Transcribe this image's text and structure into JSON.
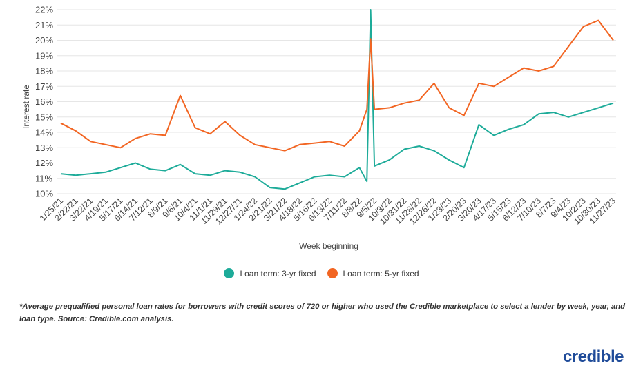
{
  "chart_data": {
    "type": "line",
    "xlabel": "Week beginning",
    "ylabel": "Interest rate",
    "ylim": [
      10,
      22
    ],
    "y_ticks": [
      "10%",
      "11%",
      "12%",
      "13%",
      "14%",
      "15%",
      "16%",
      "17%",
      "18%",
      "19%",
      "20%",
      "21%",
      "22%"
    ],
    "x_ticks": [
      "1/25/21",
      "2/22/21",
      "3/22/21",
      "4/19/21",
      "5/17/21",
      "6/14/21",
      "7/12/21",
      "8/9/21",
      "9/6/21",
      "10/4/21",
      "11/1/21",
      "11/29/21",
      "12/27/21",
      "1/24/22",
      "2/21/22",
      "3/21/22",
      "4/18/22",
      "5/16/22",
      "6/13/22",
      "7/11/22",
      "8/8/22",
      "9/5/22",
      "10/3/22",
      "10/31/22",
      "11/28/22",
      "12/26/22",
      "1/23/23",
      "2/20/23",
      "3/20/23",
      "4/17/23",
      "5/15/23",
      "6/12/23",
      "7/10/23",
      "8/7/23",
      "9/4/23",
      "10/2/23",
      "10/30/23",
      "11/27/23"
    ],
    "grid": true,
    "legend_position": "bottom",
    "series": [
      {
        "name": "Loan term: 3-yr fixed",
        "color": "#1dab99",
        "x": [
          "1/25/21",
          "2/22/21",
          "3/22/21",
          "4/19/21",
          "5/17/21",
          "6/14/21",
          "7/12/21",
          "8/9/21",
          "9/6/21",
          "10/4/21",
          "11/1/21",
          "11/29/21",
          "12/27/21",
          "1/24/22",
          "2/21/22",
          "3/21/22",
          "4/18/22",
          "5/16/22",
          "6/13/22",
          "7/11/22",
          "8/8/22",
          "8/22/22",
          "8/29/22",
          "9/5/22",
          "10/3/22",
          "10/31/22",
          "11/28/22",
          "12/26/22",
          "1/23/23",
          "2/20/23",
          "3/20/23",
          "4/17/23",
          "5/15/23",
          "6/12/23",
          "7/10/23",
          "8/7/23",
          "9/4/23",
          "10/2/23",
          "10/30/23",
          "11/27/23"
        ],
        "values": [
          11.3,
          11.2,
          11.3,
          11.4,
          11.7,
          12.0,
          11.6,
          11.5,
          11.9,
          11.3,
          11.2,
          11.5,
          11.4,
          11.1,
          10.4,
          10.3,
          10.7,
          11.1,
          11.2,
          11.1,
          11.7,
          10.8,
          22.0,
          11.8,
          12.2,
          12.9,
          13.1,
          12.8,
          12.2,
          11.7,
          14.5,
          13.8,
          14.2,
          14.5,
          15.2,
          15.3,
          15.0,
          15.3,
          15.6,
          15.9
        ]
      },
      {
        "name": "Loan term: 5-yr fixed",
        "color": "#f26522",
        "x": [
          "1/25/21",
          "2/22/21",
          "3/22/21",
          "4/19/21",
          "5/17/21",
          "6/14/21",
          "7/12/21",
          "8/9/21",
          "9/6/21",
          "10/4/21",
          "11/1/21",
          "11/29/21",
          "12/27/21",
          "1/24/22",
          "2/21/22",
          "3/21/22",
          "4/18/22",
          "5/16/22",
          "6/13/22",
          "7/11/22",
          "8/8/22",
          "8/22/22",
          "8/29/22",
          "9/5/22",
          "10/3/22",
          "10/31/22",
          "11/28/22",
          "12/26/22",
          "1/23/23",
          "2/20/23",
          "3/20/23",
          "4/17/23",
          "5/15/23",
          "6/12/23",
          "7/10/23",
          "8/7/23",
          "9/4/23",
          "10/2/23",
          "10/30/23",
          "11/27/23"
        ],
        "values": [
          14.6,
          14.1,
          13.4,
          13.2,
          13.0,
          13.6,
          13.9,
          13.8,
          16.4,
          14.3,
          13.9,
          14.7,
          13.8,
          13.2,
          13.0,
          12.8,
          13.2,
          13.3,
          13.4,
          13.1,
          14.1,
          15.5,
          20.1,
          15.5,
          15.6,
          15.9,
          16.1,
          17.2,
          15.6,
          15.1,
          17.2,
          17.0,
          17.6,
          18.2,
          18.0,
          18.3,
          19.6,
          20.9,
          21.3,
          20.0
        ]
      }
    ]
  },
  "footnote": "*Average prequalified personal loan rates for borrowers with credit scores of 720 or higher who used the Credible marketplace to select a lender by week, year, and loan type. Source: Credible.com analysis.",
  "logo_text": "credible"
}
